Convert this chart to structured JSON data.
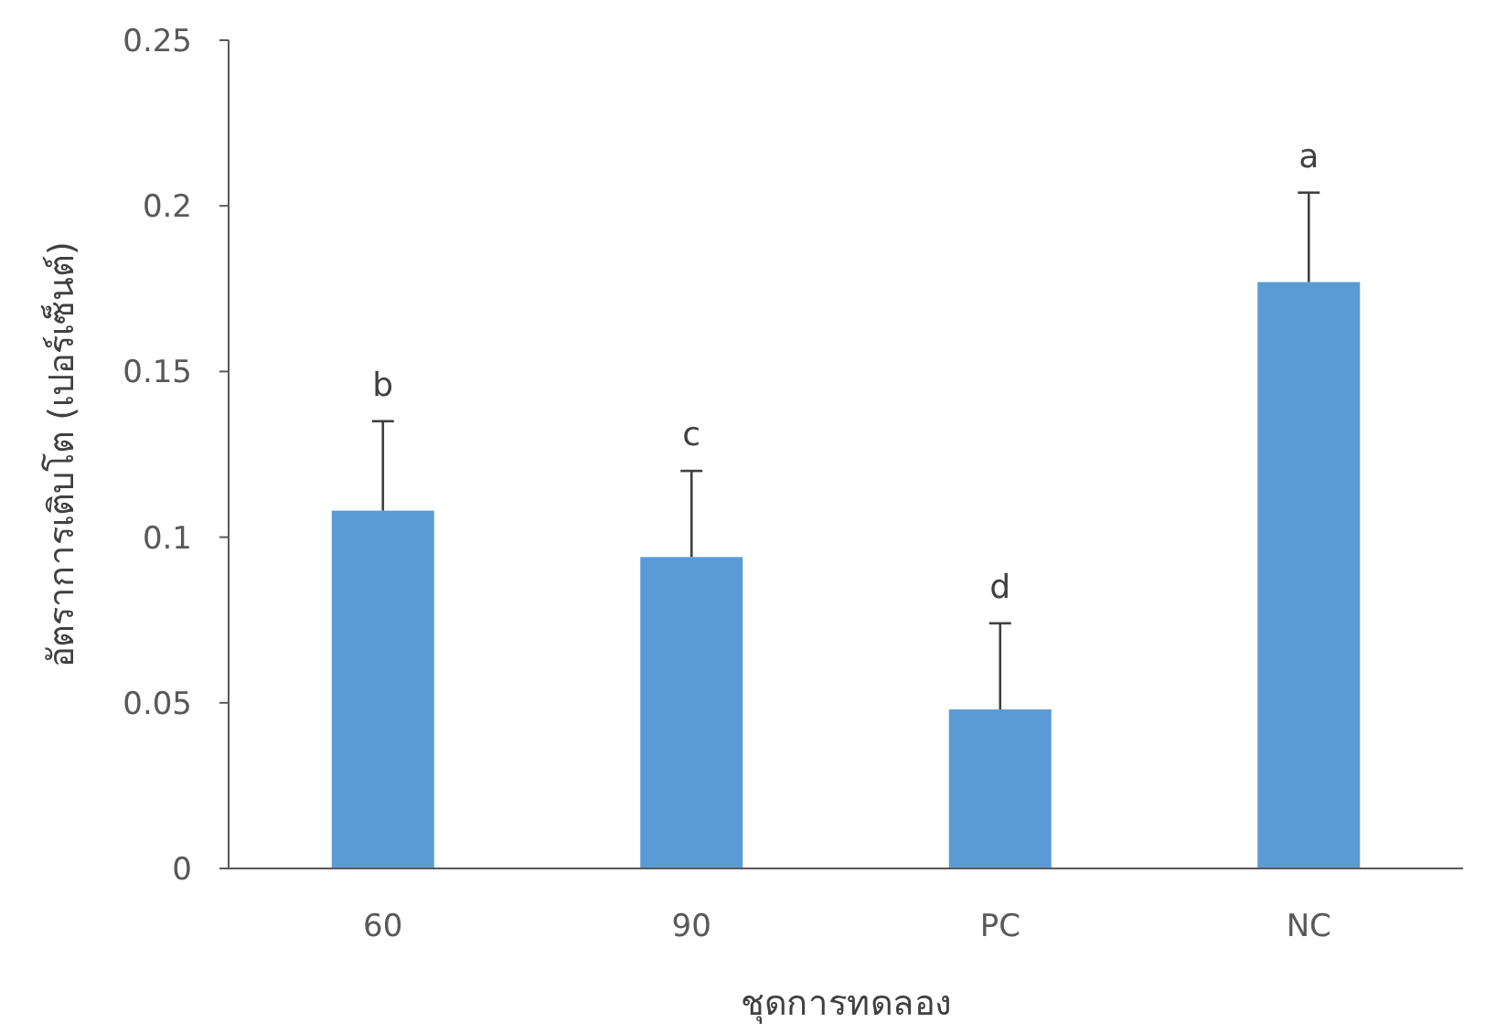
{
  "chart_data": {
    "type": "bar",
    "xlabel": "ชุดการทดลอง",
    "ylabel": "อัตราการเติบโต (เปอร์เซ็นต์)",
    "categories": [
      "60",
      "90",
      "PC",
      "NC"
    ],
    "values": [
      0.108,
      0.094,
      0.048,
      0.177
    ],
    "errors": [
      [
        0.108,
        0.135
      ],
      [
        0.094,
        0.12
      ],
      [
        0.048,
        0.074
      ],
      [
        0.177,
        0.204
      ]
    ],
    "color": "#5b9bd5",
    "ylim": [
      0,
      0.25
    ],
    "yticks": [
      0,
      0.05,
      0.1,
      0.15,
      0.2,
      0.25
    ],
    "annotations": [
      {
        "text": "b",
        "x": "60",
        "y": 0.135
      },
      {
        "text": "c",
        "x": "90",
        "y": 0.12
      },
      {
        "text": "d",
        "x": "PC",
        "y": 0.074
      },
      {
        "text": "a",
        "x": "NC",
        "y": 0.204
      }
    ]
  }
}
